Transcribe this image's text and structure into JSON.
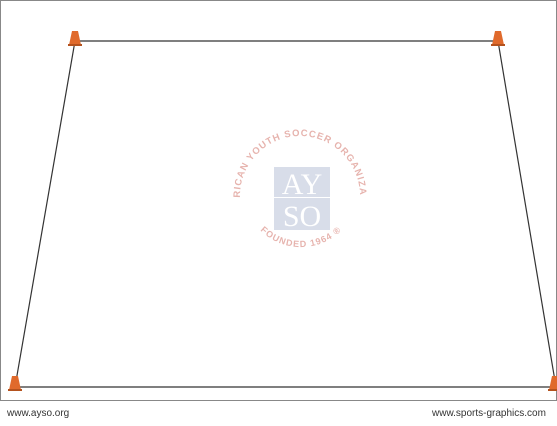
{
  "diagram": {
    "field_line_color": "#333333",
    "cone_color": "#e06a2c",
    "cone_base_color": "#b4521e",
    "cones": [
      {
        "id": "top-left"
      },
      {
        "id": "top-right"
      },
      {
        "id": "bottom-left"
      },
      {
        "id": "bottom-right"
      }
    ]
  },
  "watermark": {
    "top_arc_text": "AMERICAN YOUTH SOCCER ORGANIZATION",
    "bottom_arc_text": "FOUNDED 1964 ®",
    "letters_top": "AY",
    "letters_bottom": "SO",
    "accent_color": "#c0392b",
    "block_color": "#9aa8c8"
  },
  "footer": {
    "left_url": "www.ayso.org",
    "right_url": "www.sports-graphics.com"
  }
}
